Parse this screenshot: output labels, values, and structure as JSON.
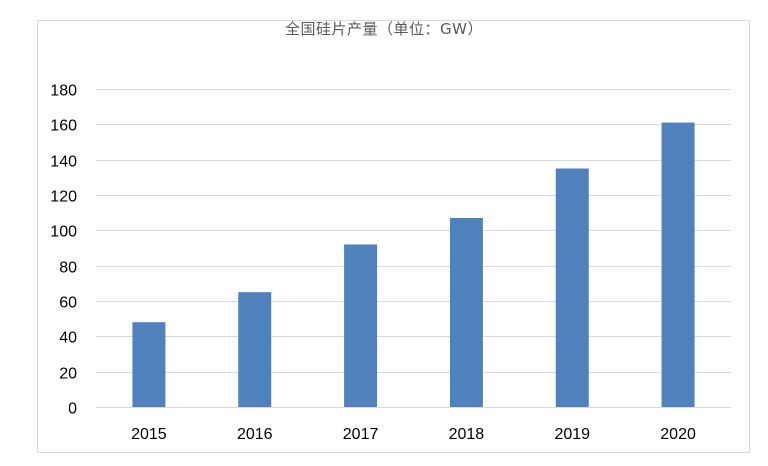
{
  "chart_data": {
    "type": "bar",
    "title": "全国硅片产量（单位：GW）",
    "xlabel": "",
    "ylabel": "",
    "categories": [
      "2015",
      "2016",
      "2017",
      "2018",
      "2019",
      "2020"
    ],
    "values": [
      48,
      65,
      92,
      107,
      135,
      161
    ],
    "ylim": [
      0,
      180
    ],
    "yticks": [
      "0",
      "20",
      "40",
      "60",
      "80",
      "100",
      "120",
      "140",
      "160",
      "180"
    ],
    "grid": true,
    "legend": "none",
    "bar_color": "#4f81bd",
    "grid_color": "#d9d9d9"
  }
}
